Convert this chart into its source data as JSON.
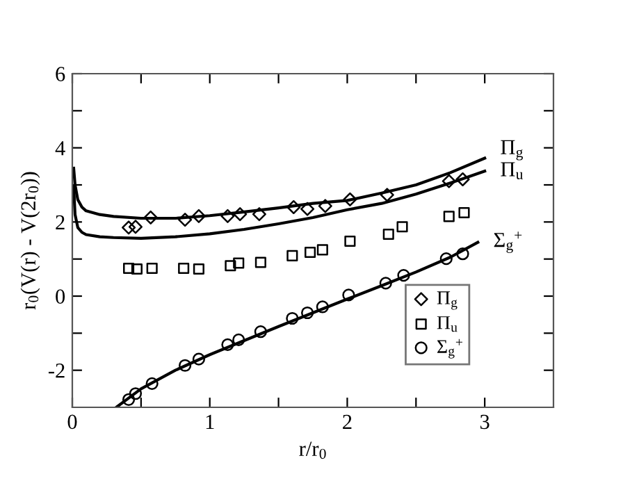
{
  "chart_data": {
    "type": "scatter",
    "xlabel": "r/r$_{0}$",
    "ylabel": "r$_{0}$(V(r) - V(2r$_{0}$))",
    "xlim": [
      0,
      3.5
    ],
    "ylim": [
      -3,
      6
    ],
    "xticks": [
      0,
      {
        "value": 0.5,
        "label": null
      },
      1,
      {
        "value": 1.5,
        "label": null
      },
      2,
      {
        "value": 2.5,
        "label": null
      },
      3
    ],
    "yticks": [
      -2,
      {
        "value": -1,
        "label": null
      },
      0,
      {
        "value": 1,
        "label": null
      },
      2,
      {
        "value": 3,
        "label": null
      },
      4,
      {
        "value": 5,
        "label": null
      },
      6
    ],
    "grid": false,
    "legend": "lower right",
    "series": [
      {
        "name": "Π$_{g}$",
        "type": "line",
        "color": "#000000",
        "x": [
          0.01,
          0.02,
          0.04,
          0.07,
          0.1,
          0.2,
          0.3,
          0.5,
          0.75,
          1.0,
          1.25,
          1.5,
          1.75,
          2.0,
          2.25,
          2.5,
          2.75,
          3.0
        ],
        "values": [
          3.45,
          3.0,
          2.6,
          2.4,
          2.3,
          2.2,
          2.15,
          2.1,
          2.1,
          2.17,
          2.27,
          2.38,
          2.5,
          2.58,
          2.78,
          3.0,
          3.33,
          3.72
        ]
      },
      {
        "name": "Π$_{u}$",
        "type": "line",
        "color": "#000000",
        "x": [
          0.01,
          0.02,
          0.04,
          0.07,
          0.1,
          0.2,
          0.3,
          0.5,
          0.75,
          1.0,
          1.25,
          1.5,
          1.75,
          2.0,
          2.25,
          2.5,
          2.75,
          3.0
        ],
        "values": [
          2.95,
          2.2,
          1.85,
          1.72,
          1.66,
          1.6,
          1.58,
          1.56,
          1.6,
          1.68,
          1.8,
          1.95,
          2.12,
          2.33,
          2.5,
          2.75,
          3.05,
          3.37
        ]
      },
      {
        "name": "Σ$_{g}$$^{+}$",
        "type": "line",
        "color": "#000000",
        "x": [
          0.32,
          0.5,
          0.75,
          1.0,
          1.25,
          1.5,
          1.75,
          2.0,
          2.25,
          2.5,
          2.75,
          2.95
        ],
        "values": [
          -3.0,
          -2.5,
          -2.0,
          -1.58,
          -1.2,
          -0.82,
          -0.45,
          -0.08,
          0.28,
          0.65,
          1.05,
          1.45
        ]
      },
      {
        "name": "Π$_{g}$",
        "marker": "diamond",
        "color": "#000000",
        "x": [
          0.41,
          0.46,
          0.57,
          0.82,
          0.92,
          1.13,
          1.22,
          1.36,
          1.61,
          1.71,
          1.84,
          2.02,
          2.29,
          2.74,
          2.84
        ],
        "values": [
          1.85,
          1.87,
          2.12,
          2.06,
          2.16,
          2.16,
          2.21,
          2.21,
          2.4,
          2.35,
          2.43,
          2.61,
          2.73,
          3.1,
          3.15
        ]
      },
      {
        "name": "Π$_{u}$",
        "marker": "square",
        "color": "#000000",
        "x": [
          0.41,
          0.47,
          0.58,
          0.81,
          0.92,
          1.15,
          1.21,
          1.37,
          1.6,
          1.73,
          1.82,
          2.02,
          2.3,
          2.4,
          2.74,
          2.85
        ],
        "values": [
          0.75,
          0.73,
          0.75,
          0.75,
          0.73,
          0.82,
          0.89,
          0.91,
          1.09,
          1.18,
          1.25,
          1.48,
          1.67,
          1.87,
          2.15,
          2.25
        ]
      },
      {
        "name": "Σ$_{g}$$^{+}$",
        "marker": "circle",
        "color": "#000000",
        "x": [
          0.41,
          0.46,
          0.58,
          0.82,
          0.92,
          1.13,
          1.21,
          1.37,
          1.6,
          1.71,
          1.82,
          2.01,
          2.28,
          2.41,
          2.72,
          2.84
        ],
        "values": [
          -2.79,
          -2.63,
          -2.36,
          -1.87,
          -1.7,
          -1.31,
          -1.18,
          -0.96,
          -0.6,
          -0.45,
          -0.29,
          0.03,
          0.35,
          0.56,
          1.01,
          1.14
        ]
      }
    ]
  }
}
